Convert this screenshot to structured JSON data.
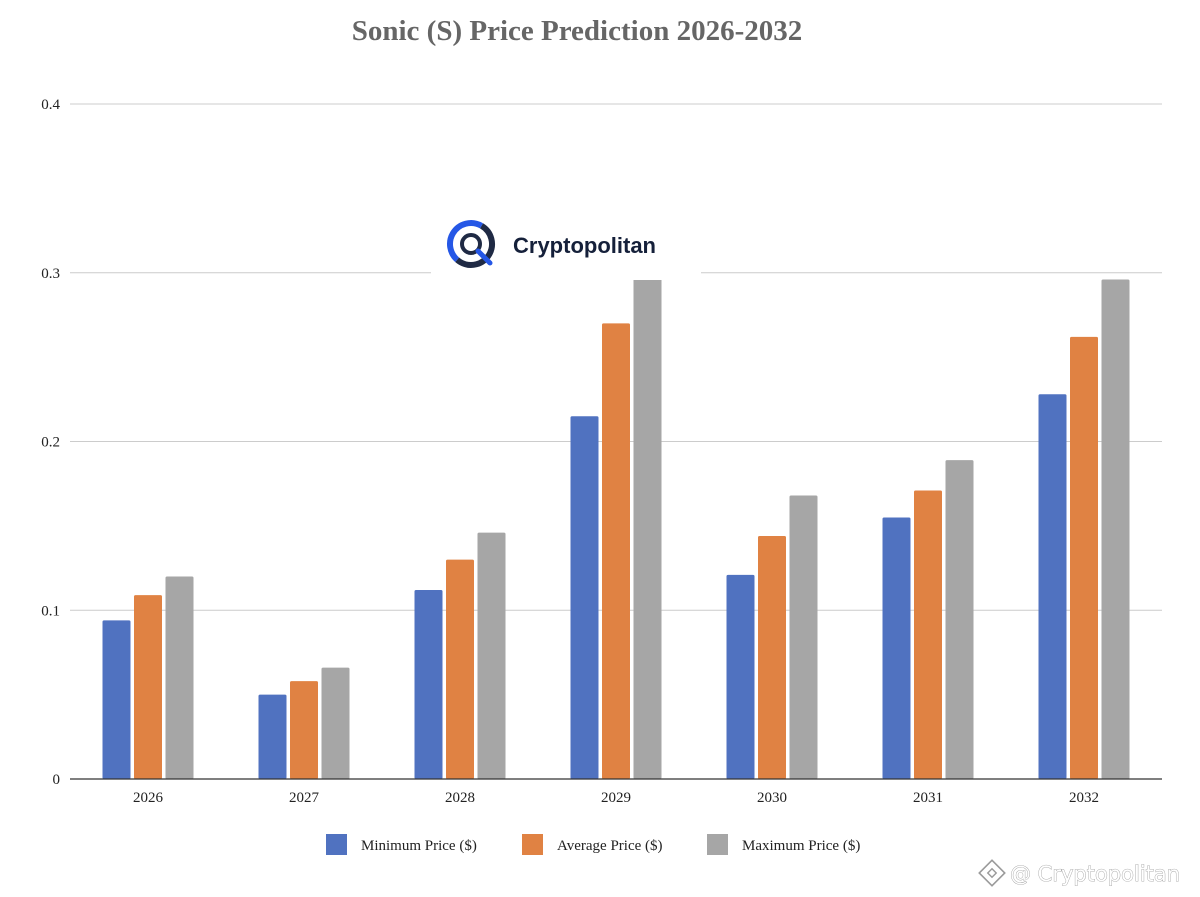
{
  "chart_data": {
    "type": "bar",
    "title": "Sonic (S)  Price Prediction 2026-2032",
    "xlabel": "",
    "ylabel": "",
    "ylim": [
      0,
      0.4
    ],
    "yticks": [
      "0",
      "0.1",
      "0.2",
      "0.3",
      "0.4"
    ],
    "categories": [
      "2026",
      "2027",
      "2028",
      "2029",
      "2030",
      "2031",
      "2032"
    ],
    "series": [
      {
        "name": "Minimum Price ($)",
        "color": "#5072c0",
        "values": [
          0.094,
          0.05,
          0.112,
          0.215,
          0.121,
          0.155,
          0.228
        ]
      },
      {
        "name": "Average Price ($)",
        "color": "#e08243",
        "values": [
          0.109,
          0.058,
          0.13,
          0.27,
          0.144,
          0.171,
          0.262
        ]
      },
      {
        "name": "Maximum Price ($)",
        "color": "#a6a6a6",
        "values": [
          0.12,
          0.066,
          0.146,
          0.303,
          0.168,
          0.189,
          0.296
        ]
      }
    ],
    "grid": true,
    "legend": "bottom-center"
  },
  "branding": {
    "logo_text": "Cryptopolitan",
    "logo_color": "#2557e6",
    "watermark_text": "@ Cryptopolitan"
  }
}
